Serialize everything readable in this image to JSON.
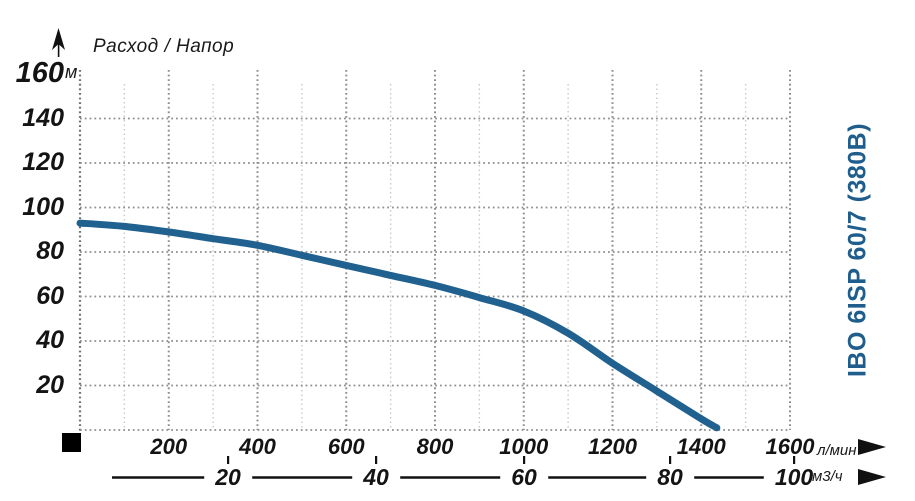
{
  "axis_title": "Расход / Напор",
  "title_vertical": "IBO 6ISP 60/7 (380В)",
  "y_unit": "м",
  "x_unit_primary": "л/мин",
  "x_unit_secondary": "м3/ч",
  "colors": {
    "curve": "#20618f",
    "model_title": "#1f5e8c",
    "grid_major": "#8f8f8f",
    "grid_minor": "#c9c9c9",
    "axis_line": "#6f6f6f",
    "text": "#141414",
    "marker": "#000000"
  },
  "chart_data": {
    "type": "line",
    "title": "Расход / Напор",
    "grid": "dotted",
    "legend": "none",
    "x_axis": {
      "label": "л/мин",
      "ticks": [
        200,
        400,
        600,
        800,
        1000,
        1200,
        1400,
        1600
      ],
      "minor_step": 100,
      "range": [
        0,
        1600
      ]
    },
    "x_axis_secondary": {
      "label": "м3/ч",
      "ticks": [
        20,
        40,
        60,
        80,
        100
      ]
    },
    "y_axis": {
      "label": "м",
      "ticks": [
        20,
        40,
        60,
        80,
        100,
        120,
        140,
        160
      ],
      "range": [
        0,
        160
      ]
    },
    "series": [
      {
        "name": "IBO 6ISP 60/7 (380В)",
        "x": [
          0,
          100,
          200,
          300,
          400,
          500,
          600,
          700,
          800,
          900,
          1000,
          1100,
          1200,
          1300,
          1400,
          1435
        ],
        "y": [
          93,
          91.5,
          89,
          86,
          83,
          78.5,
          74,
          69.5,
          65,
          59.5,
          53.5,
          43.5,
          30,
          17.5,
          5,
          1
        ]
      }
    ]
  }
}
